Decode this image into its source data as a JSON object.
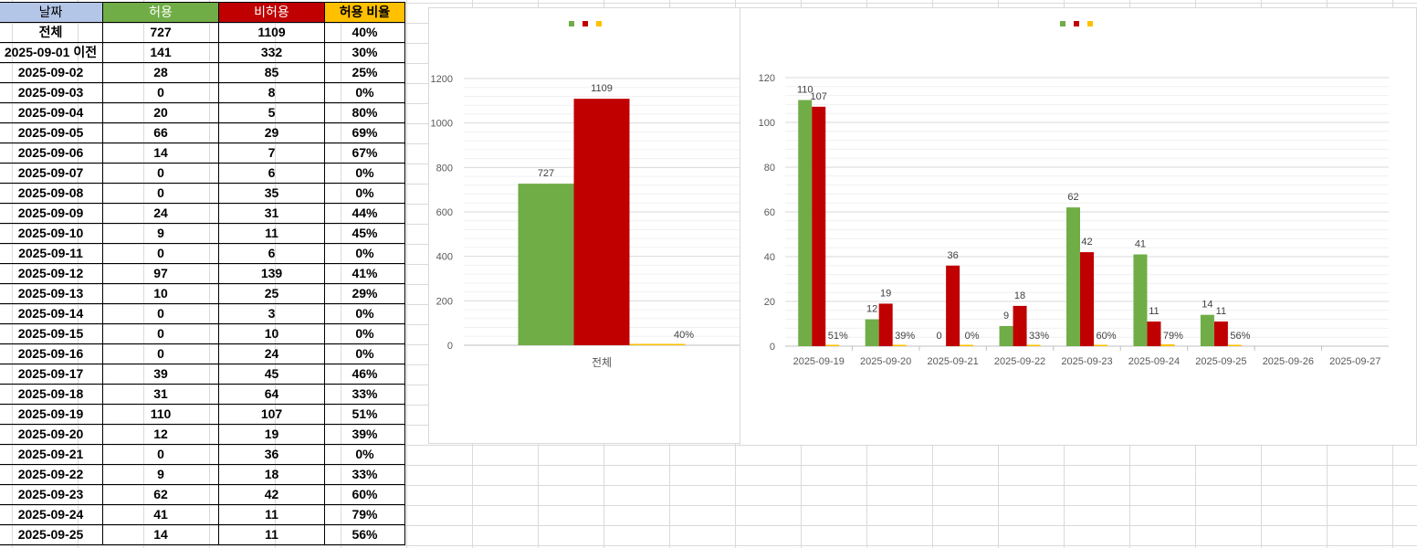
{
  "sheet": {
    "headers": [
      "날짜",
      "허용",
      "비허용",
      "허용 비율"
    ],
    "rows": [
      [
        "전체",
        "727",
        "1109",
        "40%"
      ],
      [
        "2025-09-01 이전",
        "141",
        "332",
        "30%"
      ],
      [
        "2025-09-02",
        "28",
        "85",
        "25%"
      ],
      [
        "2025-09-03",
        "0",
        "8",
        "0%"
      ],
      [
        "2025-09-04",
        "20",
        "5",
        "80%"
      ],
      [
        "2025-09-05",
        "66",
        "29",
        "69%"
      ],
      [
        "2025-09-06",
        "14",
        "7",
        "67%"
      ],
      [
        "2025-09-07",
        "0",
        "6",
        "0%"
      ],
      [
        "2025-09-08",
        "0",
        "35",
        "0%"
      ],
      [
        "2025-09-09",
        "24",
        "31",
        "44%"
      ],
      [
        "2025-09-10",
        "9",
        "11",
        "45%"
      ],
      [
        "2025-09-11",
        "0",
        "6",
        "0%"
      ],
      [
        "2025-09-12",
        "97",
        "139",
        "41%"
      ],
      [
        "2025-09-13",
        "10",
        "25",
        "29%"
      ],
      [
        "2025-09-14",
        "0",
        "3",
        "0%"
      ],
      [
        "2025-09-15",
        "0",
        "10",
        "0%"
      ],
      [
        "2025-09-16",
        "0",
        "24",
        "0%"
      ],
      [
        "2025-09-17",
        "39",
        "45",
        "46%"
      ],
      [
        "2025-09-18",
        "31",
        "64",
        "33%"
      ],
      [
        "2025-09-19",
        "110",
        "107",
        "51%"
      ],
      [
        "2025-09-20",
        "12",
        "19",
        "39%"
      ],
      [
        "2025-09-21",
        "0",
        "36",
        "0%"
      ],
      [
        "2025-09-22",
        "9",
        "18",
        "33%"
      ],
      [
        "2025-09-23",
        "62",
        "42",
        "60%"
      ],
      [
        "2025-09-24",
        "41",
        "11",
        "79%"
      ],
      [
        "2025-09-25",
        "14",
        "11",
        "56%"
      ]
    ]
  },
  "colors": {
    "allow": "#70ad47",
    "deny": "#c00000",
    "rate": "#ffc000"
  },
  "chart_data": [
    {
      "type": "bar",
      "categories": [
        "전체"
      ],
      "series": [
        {
          "values": [
            727
          ],
          "labels": [
            "727"
          ],
          "color": "#70ad47"
        },
        {
          "values": [
            1109
          ],
          "labels": [
            "1109"
          ],
          "color": "#c00000"
        },
        {
          "values": [
            0.4
          ],
          "labels": [
            "40%"
          ],
          "color": "#ffc000"
        }
      ],
      "yticks": [
        "0",
        "200",
        "400",
        "600",
        "800",
        "1000",
        "1200"
      ],
      "ylim": [
        0,
        1200
      ],
      "grid": true,
      "legend": "top-center"
    },
    {
      "type": "bar",
      "categories": [
        "2025-09-19",
        "2025-09-20",
        "2025-09-21",
        "2025-09-22",
        "2025-09-23",
        "2025-09-24",
        "2025-09-25",
        "2025-09-26",
        "2025-09-27"
      ],
      "series": [
        {
          "values": [
            110,
            12,
            0,
            9,
            62,
            41,
            14,
            null,
            null
          ],
          "labels": [
            "110",
            "12",
            "0",
            "9",
            "62",
            "41",
            "14",
            "",
            ""
          ],
          "color": "#70ad47"
        },
        {
          "values": [
            107,
            19,
            36,
            18,
            42,
            11,
            11,
            null,
            null
          ],
          "labels": [
            "107",
            "19",
            "36",
            "18",
            "42",
            "11",
            "11",
            "",
            ""
          ],
          "color": "#c00000"
        },
        {
          "values": [
            0.51,
            0.39,
            0,
            0.33,
            0.6,
            0.79,
            0.56,
            null,
            null
          ],
          "labels": [
            "51%",
            "39%",
            "0%",
            "33%",
            "60%",
            "79%",
            "56%",
            "",
            ""
          ],
          "color": "#ffc000"
        }
      ],
      "yticks": [
        "0",
        "20",
        "40",
        "60",
        "80",
        "100",
        "120"
      ],
      "ylim": [
        0,
        120
      ],
      "grid": true,
      "legend": "top-center"
    }
  ]
}
